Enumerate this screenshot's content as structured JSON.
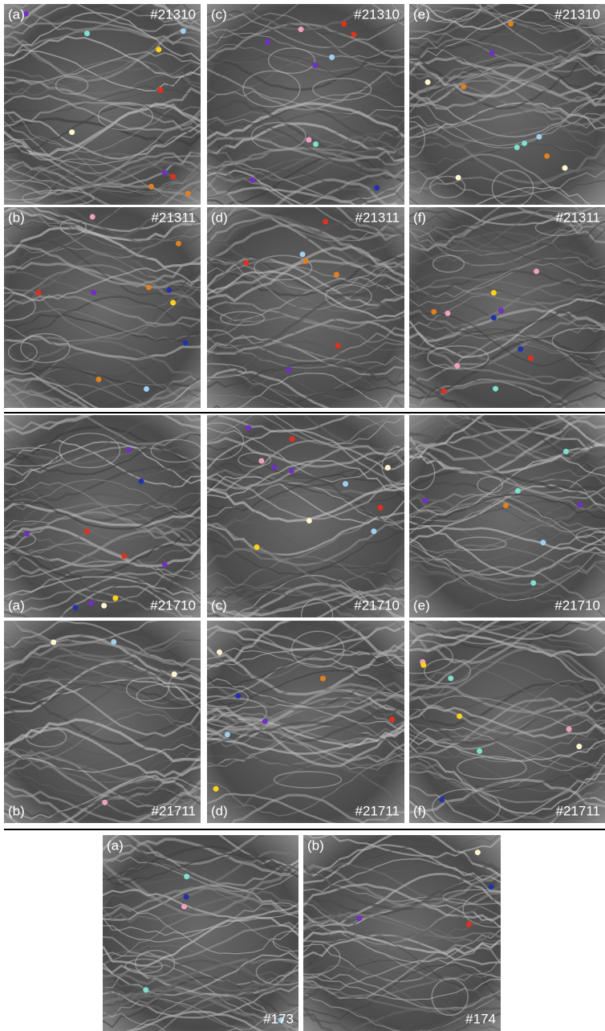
{
  "sections": [
    {
      "panels": [
        {
          "label": "(a)",
          "frame": "#21310"
        },
        {
          "label": "(c)",
          "frame": "#21310"
        },
        {
          "label": "(e)",
          "frame": "#21310"
        },
        {
          "label": "(b)",
          "frame": "#21311"
        },
        {
          "label": "(d)",
          "frame": "#21311"
        },
        {
          "label": "(f)",
          "frame": "#21311"
        }
      ]
    },
    {
      "panels": [
        {
          "label": "(a)",
          "frame": "#21710"
        },
        {
          "label": "(c)",
          "frame": "#21710"
        },
        {
          "label": "(e)",
          "frame": "#21710"
        },
        {
          "label": "(b)",
          "frame": "#21711"
        },
        {
          "label": "(d)",
          "frame": "#21711"
        },
        {
          "label": "(f)",
          "frame": "#21711"
        }
      ]
    },
    {
      "panels": [
        {
          "label": "(a)",
          "frame": "#173"
        },
        {
          "label": "(b)",
          "frame": "#174"
        }
      ]
    }
  ]
}
